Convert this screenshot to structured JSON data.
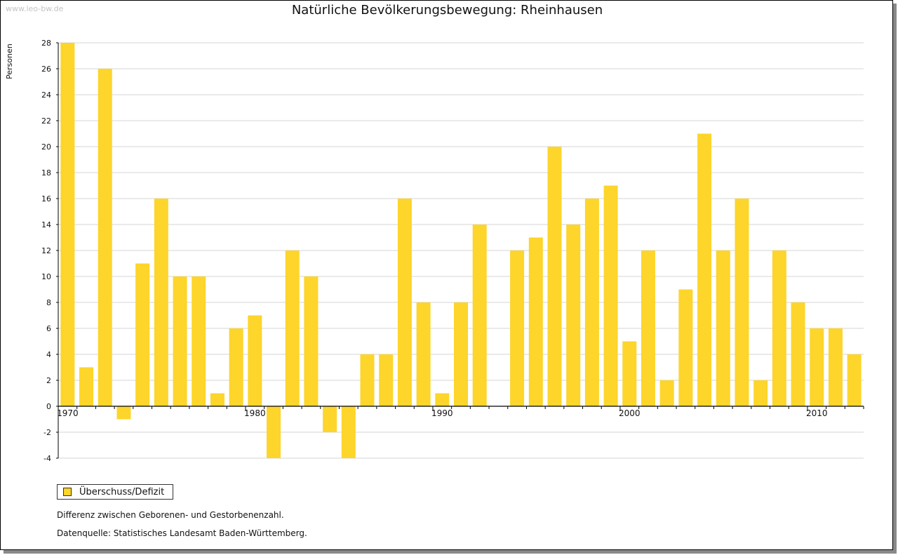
{
  "watermark": "www.leo-bw.de",
  "colors": {
    "bar": "#FDD52B",
    "grid": "#d4d4d4",
    "axis": "#000000"
  },
  "chart_data": {
    "type": "bar",
    "title": "Natürliche Bevölkerungsbewegung: Rheinhausen",
    "ylabel": "Personen",
    "xlabel": "",
    "ylim": [
      -4,
      28
    ],
    "ystep": 2,
    "x_tick_labels": [
      "1970",
      "1980",
      "1990",
      "2000",
      "2010"
    ],
    "categories": [
      1970,
      1971,
      1972,
      1973,
      1974,
      1975,
      1976,
      1977,
      1978,
      1979,
      1980,
      1981,
      1982,
      1983,
      1984,
      1985,
      1986,
      1987,
      1988,
      1989,
      1990,
      1991,
      1992,
      1993,
      1994,
      1995,
      1996,
      1997,
      1998,
      1999,
      2000,
      2001,
      2002,
      2003,
      2004,
      2005,
      2006,
      2007,
      2008,
      2009,
      2010,
      2011,
      2012
    ],
    "series": [
      {
        "name": "Überschuss/Defizit",
        "values": [
          28,
          3,
          26,
          -1,
          11,
          16,
          10,
          10,
          1,
          6,
          7,
          -4,
          12,
          10,
          -2,
          -4,
          4,
          4,
          16,
          8,
          1,
          8,
          14,
          0,
          12,
          13,
          20,
          14,
          16,
          17,
          5,
          12,
          2,
          9,
          21,
          12,
          16,
          2,
          12,
          8,
          6,
          6,
          4
        ]
      }
    ],
    "legend_position": "bottom-left"
  },
  "notes": {
    "line1": "Differenz zwischen Geborenen- und Gestorbenenzahl.",
    "line2": "Datenquelle: Statistisches Landesamt Baden-Württemberg."
  }
}
